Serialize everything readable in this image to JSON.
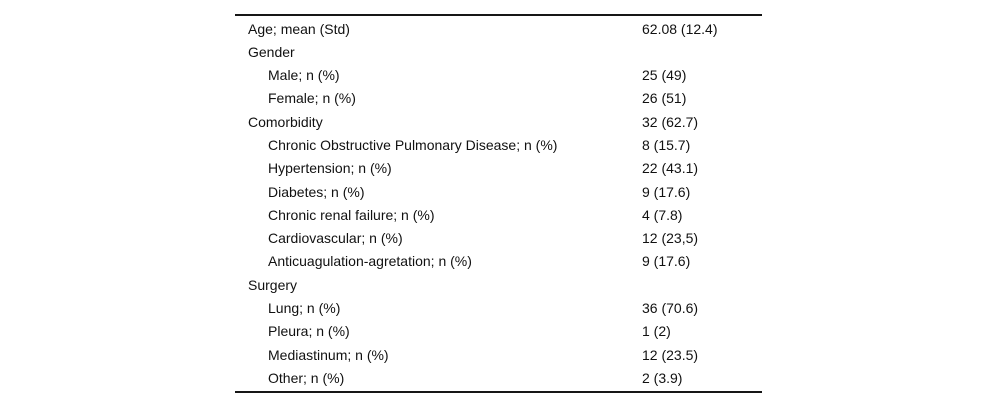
{
  "table": {
    "rows": [
      {
        "label": "Age; mean (Std)",
        "value": "62.08 (12.4)",
        "indent": 0
      },
      {
        "label": "Gender",
        "value": "",
        "indent": 0
      },
      {
        "label": "Male; n (%)",
        "value": "25 (49)",
        "indent": 1
      },
      {
        "label": "Female; n (%)",
        "value": "26 (51)",
        "indent": 1
      },
      {
        "label": "Comorbidity",
        "value": "32 (62.7)",
        "indent": 0
      },
      {
        "label": "Chronic Obstructive Pulmonary Disease; n (%)",
        "value": "8 (15.7)",
        "indent": 1
      },
      {
        "label": "Hypertension; n (%)",
        "value": "22 (43.1)",
        "indent": 1
      },
      {
        "label": "Diabetes; n (%)",
        "value": "9 (17.6)",
        "indent": 1
      },
      {
        "label": "Chronic renal failure; n (%)",
        "value": "4 (7.8)",
        "indent": 1
      },
      {
        "label": "Cardiovascular; n (%)",
        "value": "12 (23,5)",
        "indent": 1
      },
      {
        "label": "Anticuagulation-agretation; n (%)",
        "value": "9 (17.6)",
        "indent": 1
      },
      {
        "label": "Surgery",
        "value": "",
        "indent": 0
      },
      {
        "label": "Lung; n (%)",
        "value": "36 (70.6)",
        "indent": 1
      },
      {
        "label": "Pleura; n (%)",
        "value": "1 (2)",
        "indent": 1
      },
      {
        "label": "Mediastinum; n (%)",
        "value": "12 (23.5)",
        "indent": 1
      },
      {
        "label": "Other; n (%)",
        "value": "2 (3.9)",
        "indent": 1
      }
    ],
    "colors": {
      "text": "#111111",
      "rule": "#161616",
      "background": "#ffffff"
    }
  }
}
